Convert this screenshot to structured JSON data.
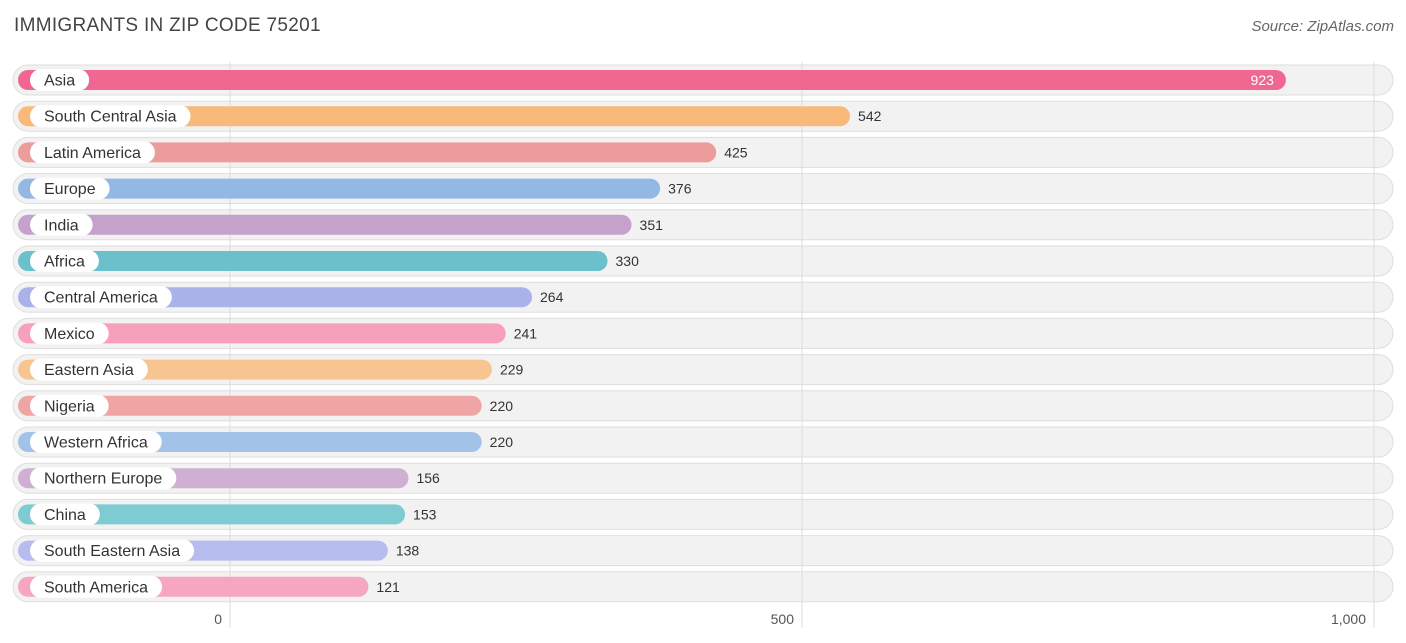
{
  "header": {
    "title": "IMMIGRANTS IN ZIP CODE 75201",
    "source": "Source: ZipAtlas.com"
  },
  "chart_data": {
    "type": "bar",
    "orientation": "horizontal",
    "title": "IMMIGRANTS IN ZIP CODE 75201",
    "xlabel": "",
    "ylabel": "",
    "xlim": [
      0,
      1000
    ],
    "x_ticks": [
      0,
      500,
      1000
    ],
    "x_tick_labels": [
      "0",
      "500",
      "1,000"
    ],
    "grid": true,
    "categories": [
      "Asia",
      "South Central Asia",
      "Latin America",
      "Europe",
      "India",
      "Africa",
      "Central America",
      "Mexico",
      "Eastern Asia",
      "Nigeria",
      "Western Africa",
      "Northern Europe",
      "China",
      "South Eastern Asia",
      "South America"
    ],
    "values": [
      923,
      542,
      425,
      376,
      351,
      330,
      264,
      241,
      229,
      220,
      220,
      156,
      153,
      138,
      121
    ],
    "value_labels": [
      "923",
      "542",
      "425",
      "376",
      "351",
      "330",
      "264",
      "241",
      "229",
      "220",
      "220",
      "156",
      "153",
      "138",
      "121"
    ],
    "colors": [
      "#f06792",
      "#f8b97a",
      "#ec9c9a",
      "#93b8e4",
      "#c4a2cc",
      "#6cc0cb",
      "#a9b3ea",
      "#f7a0bb",
      "#f8c590",
      "#efa5a4",
      "#a3c2e8",
      "#cfb0d2",
      "#7ecbd2",
      "#b6bdee",
      "#f6a6c0"
    ]
  }
}
